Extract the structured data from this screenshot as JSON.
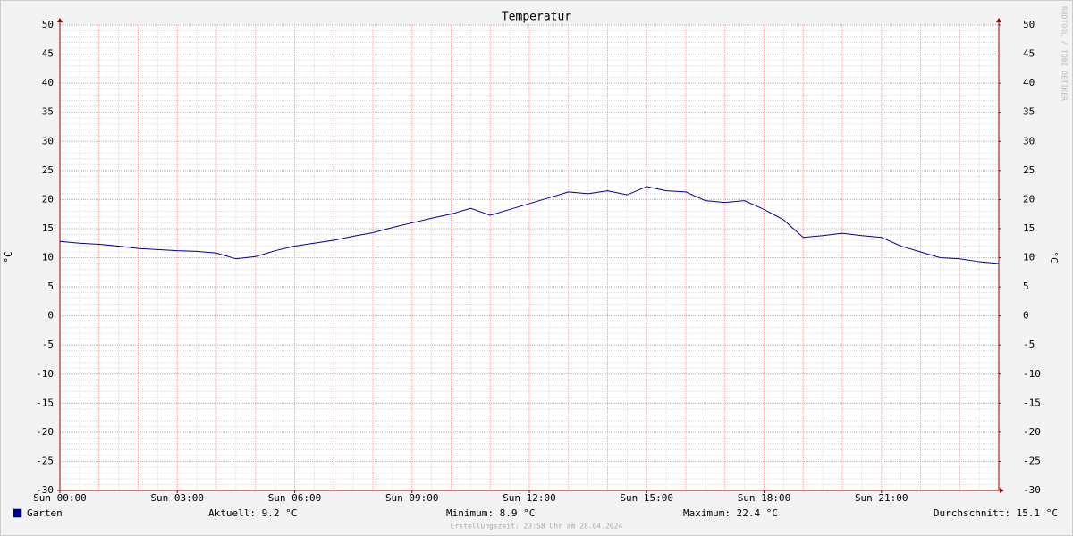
{
  "chart_data": {
    "type": "line",
    "title": "Temperatur",
    "y_label": "°C",
    "y2_label": "°C",
    "watermark": "RRDTOOL / TOBI OETIKER",
    "footer": "Erstellungszeit: 23:58 Uhr am 28.04.2024",
    "stats": [
      "Aktuell: 9.2 °C",
      "Minimum: 8.9 °C",
      "Maximum: 22.4 °C",
      "Durchschnitt: 15.1 °C"
    ],
    "xlim": [
      0,
      24
    ],
    "xticks": [
      {
        "value": 0,
        "label": "Sun 00:00"
      },
      {
        "value": 3,
        "label": "Sun 03:00"
      },
      {
        "value": 6,
        "label": "Sun 06:00"
      },
      {
        "value": 9,
        "label": "Sun 09:00"
      },
      {
        "value": 12,
        "label": "Sun 12:00"
      },
      {
        "value": 15,
        "label": "Sun 15:00"
      },
      {
        "value": 18,
        "label": "Sun 18:00"
      },
      {
        "value": 21,
        "label": "Sun 21:00"
      }
    ],
    "ylim": [
      -30,
      50
    ],
    "yticks": [
      -30,
      -25,
      -20,
      -15,
      -10,
      -5,
      0,
      5,
      10,
      15,
      20,
      25,
      30,
      35,
      40,
      45,
      50
    ],
    "y2lim": [
      -30,
      50
    ],
    "y2ticks": [
      -30,
      -25,
      -20,
      -15,
      -10,
      -5,
      0,
      5,
      10,
      15,
      20,
      25,
      30,
      35,
      40,
      45,
      50
    ],
    "grid": true,
    "x": [
      0,
      0.5,
      1,
      1.5,
      2,
      2.5,
      3,
      3.5,
      4,
      4.5,
      5,
      5.5,
      6,
      6.5,
      7,
      7.5,
      8,
      8.5,
      9,
      9.5,
      10,
      10.5,
      11,
      11.5,
      12,
      12.5,
      13,
      13.5,
      14,
      14.5,
      15,
      15.5,
      16,
      16.5,
      17,
      17.5,
      18,
      18.5,
      19,
      19.5,
      20,
      20.5,
      21,
      21.5,
      22,
      22.5,
      23,
      23.5,
      24
    ],
    "series": [
      {
        "name": "Garten",
        "color": "#000099",
        "values": [
          12.8,
          12.5,
          12.3,
          12.0,
          11.6,
          11.4,
          11.2,
          11.1,
          10.8,
          9.8,
          10.2,
          11.2,
          12.0,
          12.5,
          13.0,
          13.7,
          14.3,
          15.2,
          16.0,
          16.8,
          17.5,
          18.5,
          17.3,
          18.3,
          19.3,
          20.3,
          21.3,
          21.0,
          21.5,
          20.8,
          22.2,
          21.5,
          21.3,
          19.8,
          19.5,
          19.8,
          18.3,
          16.5,
          13.5,
          13.8,
          14.2,
          13.8,
          13.5,
          12.0,
          11.0,
          10.0,
          9.8,
          9.3,
          9.0
        ]
      }
    ]
  }
}
